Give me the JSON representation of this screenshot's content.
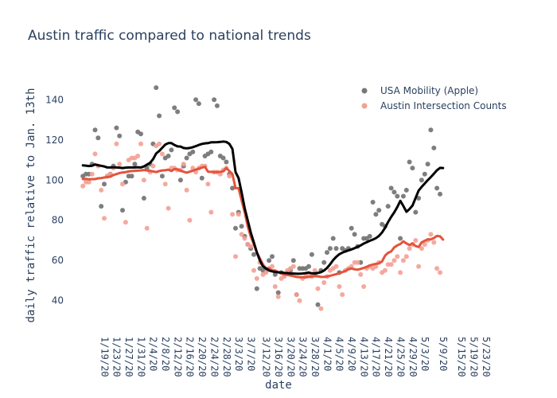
{
  "chart_data": {
    "type": "line",
    "title": "Austin traffic compared to national trends",
    "xlabel": "date",
    "ylabel": "daily traffic relative to Jan. 13th",
    "x_start": "2020-01-13",
    "x_end": "2020-05-28",
    "xlim": [
      "2020-01-15",
      "2020-05-28"
    ],
    "ylim": [
      28,
      152
    ],
    "y_ticks": [
      40,
      60,
      80,
      100,
      120,
      140
    ],
    "x_tick_labels": [
      "1/19/20",
      "1/23/20",
      "1/27/20",
      "1/31/20",
      "2/4/20",
      "2/8/20",
      "2/12/20",
      "2/16/20",
      "2/20/20",
      "2/24/20",
      "2/28/20",
      "3/3/20",
      "3/7/20",
      "3/12/20",
      "3/16/20",
      "3/20/20",
      "3/24/20",
      "3/28/20",
      "4/1/20",
      "4/5/20",
      "4/9/20",
      "4/13/20",
      "4/17/20",
      "4/21/20",
      "4/25/20",
      "4/29/20",
      "5/3/20",
      "5/9/20",
      "5/15/20",
      "5/19/20",
      "5/23/20"
    ],
    "x_tick_dates": [
      "2020-01-19",
      "2020-01-23",
      "2020-01-27",
      "2020-01-31",
      "2020-02-04",
      "2020-02-08",
      "2020-02-12",
      "2020-02-16",
      "2020-02-20",
      "2020-02-24",
      "2020-02-28",
      "2020-03-03",
      "2020-03-07",
      "2020-03-12",
      "2020-03-16",
      "2020-03-20",
      "2020-03-24",
      "2020-03-28",
      "2020-04-01",
      "2020-04-05",
      "2020-04-09",
      "2020-04-13",
      "2020-04-17",
      "2020-04-21",
      "2020-04-25",
      "2020-04-29",
      "2020-05-03",
      "2020-05-09",
      "2020-05-15",
      "2020-05-19",
      "2020-05-23"
    ],
    "grid": false,
    "legend": "top-right",
    "series": [
      {
        "name": "USA Mobility (Apple)",
        "mode": "markers",
        "color": "#777777",
        "values": [
          91,
          102,
          103,
          103,
          108,
          125,
          121,
          87,
          98,
          102,
          103,
          107,
          126,
          122,
          85,
          99,
          102,
          102,
          108,
          124,
          123,
          91,
          106,
          108,
          118,
          146,
          132,
          102,
          111,
          112,
          115,
          136,
          134,
          100,
          107,
          111,
          113,
          114,
          140,
          138,
          101,
          112,
          113,
          114,
          140,
          137,
          112,
          111,
          109,
          103,
          96,
          76,
          84,
          77,
          72,
          68,
          66,
          63,
          46,
          56,
          55,
          55,
          60,
          62,
          53,
          44,
          54,
          53,
          54,
          55,
          60,
          43,
          56,
          56,
          56,
          57,
          63,
          53,
          38,
          55,
          59,
          64,
          66,
          71,
          66,
          54,
          66,
          65,
          66,
          76,
          73,
          67,
          59,
          71,
          71,
          72,
          89,
          83,
          85,
          78,
          77,
          87,
          96,
          94,
          92,
          71,
          92,
          95,
          109,
          106,
          84,
          91,
          100,
          103,
          108,
          125,
          116,
          96,
          93
        ]
      },
      {
        "name": "Austin Intersection Counts",
        "mode": "markers",
        "color": "#f4a093",
        "values": [
          81,
          97,
          99,
          99,
          103,
          113,
          107,
          95,
          81,
          102,
          103,
          106,
          118,
          108,
          98,
          79,
          110,
          111,
          111,
          112,
          118,
          100,
          76,
          104,
          107,
          117,
          118,
          113,
          98,
          86,
          106,
          106,
          105,
          105,
          108,
          95,
          80,
          106,
          104,
          106,
          107,
          107,
          98,
          84,
          104,
          104,
          103,
          105,
          106,
          102,
          83,
          62,
          83,
          73,
          71,
          68,
          67,
          55,
          51,
          59,
          53,
          54,
          56,
          57,
          47,
          42,
          51,
          52,
          55,
          56,
          57,
          43,
          40,
          51,
          52,
          53,
          52,
          55,
          46,
          36,
          49,
          52,
          55,
          56,
          57,
          47,
          43,
          55,
          56,
          57,
          59,
          59,
          53,
          47,
          56,
          57,
          56,
          57,
          59,
          54,
          55,
          58,
          58,
          60,
          62,
          54,
          60,
          62,
          66,
          68,
          70,
          57,
          66,
          68,
          70,
          73,
          69,
          56,
          54
        ]
      },
      {
        "name": "USA Mobility (Apple) smoothed",
        "mode": "lines",
        "color": "#000000",
        "values": [
          107,
          107.3,
          107.2,
          107,
          107.1,
          107.8,
          107.4,
          107.1,
          106.8,
          106.3,
          106.3,
          106.4,
          106.3,
          106.2,
          106,
          106.2,
          106.3,
          106.3,
          106.3,
          106.4,
          106.3,
          106.8,
          107.7,
          108.6,
          110.4,
          113.2,
          114.5,
          116.1,
          117.7,
          118.4,
          118.4,
          117.5,
          116.8,
          116.7,
          116,
          115.8,
          116,
          116.4,
          116.9,
          117.5,
          118,
          118.3,
          118.4,
          118.8,
          118.8,
          118.9,
          119,
          119.2,
          119,
          118,
          115.5,
          104,
          101,
          94,
          86,
          80,
          74,
          69,
          64,
          60,
          57,
          56,
          55,
          54.6,
          54.3,
          54.1,
          54,
          53.8,
          53.7,
          53.5,
          53.5,
          53.4,
          53.4,
          53.5,
          53.7,
          54,
          53.6,
          53.6,
          53.8,
          54.2,
          55,
          56.3,
          58.1,
          60.2,
          61.8,
          63.1,
          63.9,
          64.5,
          65,
          65.5,
          66.1,
          66.8,
          67.5,
          68.4,
          69.1,
          69.8,
          70.4,
          71.1,
          72.2,
          73.9,
          76.2,
          79.1,
          81.7,
          83.9,
          86.6,
          89.7,
          87.1,
          84.2,
          85.6,
          87.3,
          91.1,
          94.8,
          96.6,
          98.3,
          100,
          101.5,
          103.2,
          104.9,
          106.1,
          106
        ]
      },
      {
        "name": "Austin Intersection Counts smoothed",
        "mode": "lines",
        "color": "#e5533b",
        "values": [
          100.5,
          100.5,
          100.6,
          100.4,
          100.5,
          100.5,
          100.9,
          101,
          101.3,
          101.5,
          101.7,
          102.5,
          103,
          103.5,
          103.8,
          104,
          104.3,
          104.5,
          104.6,
          104.7,
          104.8,
          105,
          104.8,
          104.6,
          104.3,
          104,
          104.5,
          104.8,
          104.9,
          105.2,
          104.5,
          105.5,
          105.3,
          104.7,
          104.2,
          103.7,
          104.2,
          104.7,
          105.2,
          105.7,
          106.2,
          106.6,
          104.2,
          104.1,
          104,
          104,
          104.1,
          104.4,
          106,
          104.5,
          103,
          96,
          96,
          90,
          84,
          77,
          72,
          68,
          64,
          61,
          58,
          56,
          56,
          55,
          55,
          54.2,
          53.5,
          53.2,
          52.8,
          52.5,
          52.2,
          51.8,
          51.7,
          51.7,
          51.7,
          51.8,
          52.1,
          52.2,
          52.1,
          51.8,
          51.8,
          52,
          52.4,
          52.8,
          53.2,
          53.6,
          54.2,
          54.8,
          55.7,
          56,
          55.6,
          55.4,
          55.8,
          56.3,
          56.9,
          57.5,
          58,
          58.3,
          58.6,
          59.5,
          62.4,
          63.8,
          64.5,
          66.5,
          67.5,
          68.2,
          69.5,
          68.5,
          67.7,
          68.5,
          67.2,
          66.7,
          69,
          69.8,
          70.5,
          70.5,
          71.2,
          72.2,
          72,
          70.4
        ]
      }
    ]
  }
}
